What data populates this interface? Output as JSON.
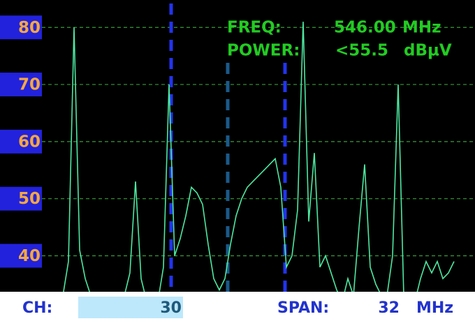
{
  "chart_data": {
    "type": "line",
    "categories": [
      null,
      null,
      null,
      null,
      null,
      null,
      null,
      null,
      null,
      null,
      null,
      null,
      null,
      null,
      null,
      null,
      null,
      null,
      null,
      null,
      null,
      null,
      null,
      null,
      null,
      null,
      null,
      null,
      null,
      null,
      null,
      null,
      null,
      null,
      null,
      null,
      null,
      null,
      null,
      null,
      null,
      null,
      null,
      null,
      null,
      null,
      null,
      null,
      null,
      null,
      null,
      null,
      null,
      null,
      null,
      null,
      null,
      null,
      null,
      null,
      null,
      null,
      null,
      null,
      null,
      null,
      null,
      null,
      null,
      null,
      null
    ],
    "values": [
      33,
      39,
      80,
      41,
      36,
      33,
      32,
      32,
      32,
      32,
      32,
      33,
      37,
      53,
      36,
      32,
      32,
      32,
      38,
      70,
      40,
      43,
      47,
      52,
      51,
      49,
      42,
      36,
      34,
      36,
      42,
      47,
      50,
      52,
      53,
      54,
      55,
      56,
      57,
      52,
      38,
      40,
      48,
      81,
      46,
      58,
      38,
      40,
      37,
      34,
      32,
      36,
      33,
      45,
      56,
      38,
      35,
      33,
      33,
      40,
      70,
      33,
      32,
      32,
      36,
      39,
      37,
      39,
      36,
      37,
      39
    ],
    "color": "#4de8a0",
    "ylim": [
      33.7,
      84.8
    ],
    "yticks": [
      40,
      50,
      60,
      70,
      80
    ],
    "grid": true
  },
  "readout": {
    "freq_label": "FREQ:",
    "freq_value": "546.00",
    "freq_unit": "MHz",
    "power_label": "POWER:",
    "power_value": "<55.5",
    "power_unit": "dBµV"
  },
  "footer": {
    "ch_label": "CH:",
    "ch_value": "30",
    "span_label": "SPAN:",
    "span_value": "32",
    "span_unit": "MHz"
  }
}
